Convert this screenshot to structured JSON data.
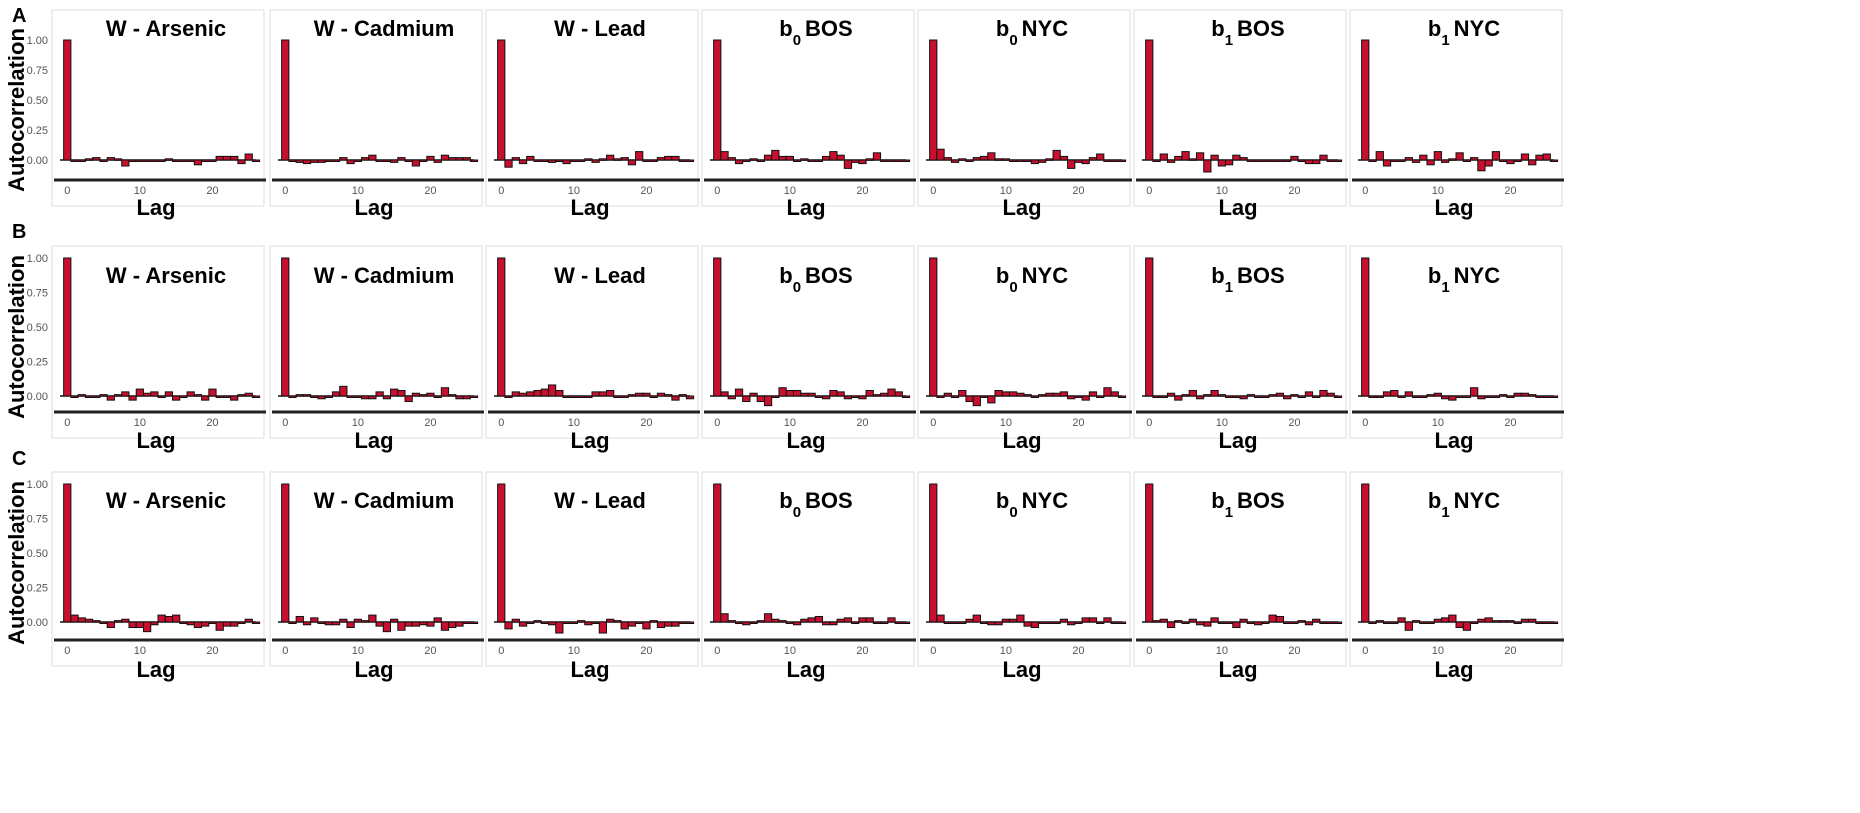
{
  "chart_data": {
    "type": "bar",
    "y_axis_label": "Autocorrelation",
    "x_axis_label": "Lag",
    "y_ticks": [
      "1.00",
      "0.75",
      "0.50",
      "0.25",
      "0.00"
    ],
    "x_ticks": [
      "0",
      "10",
      "20"
    ],
    "ylim": [
      -0.15,
      1.05
    ],
    "xlim": [
      -1,
      26
    ],
    "bar_color": "#c8102e",
    "rows": [
      {
        "label": "A",
        "panels": [
          {
            "title": "W - Arsenic",
            "values": [
              1.0,
              0.0,
              0.0,
              0.01,
              0.02,
              0.0,
              0.02,
              0.01,
              -0.05,
              0.0,
              -0.01,
              0.0,
              -0.01,
              -0.01,
              0.01,
              0.0,
              -0.01,
              0.0,
              -0.04,
              -0.01,
              0.0,
              0.03,
              0.03,
              0.03,
              -0.03,
              0.05,
              -0.01
            ]
          },
          {
            "title": "W - Cadmium",
            "values": [
              1.0,
              0.0,
              -0.02,
              -0.03,
              -0.02,
              -0.02,
              -0.01,
              0.0,
              0.02,
              -0.03,
              0.0,
              0.02,
              0.04,
              -0.01,
              0.0,
              -0.02,
              0.02,
              -0.01,
              -0.05,
              -0.01,
              0.03,
              -0.02,
              0.04,
              0.02,
              0.02,
              0.02,
              0.0
            ]
          },
          {
            "title": "W - Lead",
            "values": [
              1.0,
              -0.06,
              0.02,
              -0.03,
              0.03,
              0.0,
              -0.01,
              -0.02,
              0.0,
              -0.03,
              -0.01,
              -0.01,
              0.01,
              -0.02,
              0.01,
              0.04,
              0.01,
              0.02,
              -0.04,
              0.07,
              -0.01,
              0.0,
              0.02,
              0.03,
              0.03,
              0.0,
              0.0
            ]
          },
          {
            "title": "b0 BOS",
            "sub": "0",
            "main1": "b",
            "main2": "BOS",
            "values": [
              1.0,
              0.07,
              0.02,
              -0.03,
              0.0,
              0.01,
              -0.01,
              0.04,
              0.08,
              0.03,
              0.03,
              0.0,
              0.01,
              0.0,
              -0.01,
              0.03,
              0.07,
              0.04,
              -0.07,
              -0.02,
              -0.03,
              0.01,
              0.06,
              0.0,
              0.0,
              0.0,
              0.0
            ]
          },
          {
            "title": "b0 NYC",
            "sub": "0",
            "main1": "b",
            "main2": "NYC",
            "values": [
              1.0,
              0.09,
              0.02,
              -0.02,
              0.01,
              0.0,
              0.02,
              0.03,
              0.06,
              0.01,
              0.01,
              -0.01,
              0.0,
              0.0,
              -0.03,
              -0.02,
              0.01,
              0.08,
              0.03,
              -0.07,
              -0.02,
              -0.03,
              0.02,
              0.05,
              0.0,
              0.0,
              0.0
            ]
          },
          {
            "title": "b1 BOS",
            "sub": "1",
            "main1": "b",
            "main2": "BOS",
            "values": [
              1.0,
              0.0,
              0.05,
              -0.02,
              0.03,
              0.07,
              0.01,
              0.06,
              -0.1,
              0.04,
              -0.05,
              -0.04,
              0.04,
              0.02,
              0.0,
              -0.01,
              -0.01,
              0.0,
              0.0,
              -0.01,
              0.03,
              -0.01,
              -0.03,
              -0.03,
              0.04,
              0.0,
              0.0
            ]
          },
          {
            "title": "b1 NYC",
            "sub": "1",
            "main1": "b",
            "main2": "NYC",
            "values": [
              1.0,
              0.0,
              0.07,
              -0.05,
              0.0,
              0.0,
              0.02,
              -0.02,
              0.04,
              -0.04,
              0.07,
              -0.02,
              0.01,
              0.06,
              0.0,
              0.02,
              -0.09,
              -0.05,
              0.07,
              -0.01,
              -0.03,
              0.0,
              0.05,
              -0.04,
              0.04,
              0.05,
              0.0
            ]
          }
        ]
      },
      {
        "label": "B",
        "panels": [
          {
            "title": "W - Arsenic",
            "values": [
              1.0,
              0.0,
              0.01,
              0.0,
              -0.01,
              0.01,
              -0.03,
              0.01,
              0.03,
              -0.03,
              0.05,
              0.02,
              0.03,
              -0.01,
              0.03,
              -0.03,
              -0.01,
              0.03,
              0.01,
              -0.03,
              0.05,
              0.0,
              0.0,
              -0.03,
              0.01,
              0.02,
              0.0
            ]
          },
          {
            "title": "W - Cadmium",
            "values": [
              1.0,
              0.0,
              0.01,
              0.01,
              -0.01,
              -0.02,
              0.0,
              0.03,
              0.07,
              0.0,
              0.0,
              -0.02,
              -0.02,
              0.03,
              -0.02,
              0.05,
              0.04,
              -0.04,
              0.02,
              0.01,
              0.02,
              0.0,
              0.06,
              0.01,
              -0.02,
              -0.02,
              0.0
            ]
          },
          {
            "title": "W - Lead",
            "values": [
              1.0,
              0.0,
              0.03,
              0.02,
              0.03,
              0.04,
              0.05,
              0.08,
              0.04,
              0.0,
              -0.01,
              -0.01,
              -0.01,
              0.03,
              0.03,
              0.04,
              0.0,
              0.0,
              0.01,
              0.02,
              0.02,
              -0.01,
              0.02,
              0.01,
              -0.03,
              0.01,
              -0.02
            ]
          },
          {
            "title": "b0 BOS",
            "sub": "0",
            "main1": "b",
            "main2": "BOS",
            "values": [
              1.0,
              0.03,
              -0.02,
              0.05,
              -0.04,
              0.02,
              -0.04,
              -0.07,
              -0.01,
              0.06,
              0.04,
              0.04,
              0.02,
              0.02,
              0.0,
              -0.02,
              0.04,
              0.03,
              -0.02,
              0.0,
              -0.02,
              0.04,
              0.01,
              0.02,
              0.05,
              0.03,
              0.0
            ]
          },
          {
            "title": "b0 NYC",
            "sub": "0",
            "main1": "b",
            "main2": "NYC",
            "values": [
              1.0,
              0.0,
              0.02,
              0.0,
              0.04,
              -0.04,
              -0.07,
              0.0,
              -0.05,
              0.04,
              0.03,
              0.03,
              0.02,
              0.01,
              0.0,
              0.01,
              0.02,
              0.02,
              0.03,
              -0.02,
              0.0,
              -0.03,
              0.03,
              0.0,
              0.06,
              0.03,
              0.0
            ]
          },
          {
            "title": "b1 BOS",
            "sub": "1",
            "main1": "b",
            "main2": "BOS",
            "values": [
              1.0,
              0.0,
              0.0,
              0.02,
              -0.03,
              0.01,
              0.04,
              -0.02,
              0.01,
              0.04,
              0.01,
              0.0,
              -0.01,
              -0.02,
              0.01,
              0.0,
              0.0,
              0.01,
              0.02,
              -0.02,
              0.01,
              0.0,
              0.03,
              0.0,
              0.04,
              0.02,
              0.0
            ]
          },
          {
            "title": "b1 NYC",
            "sub": "1",
            "main1": "b",
            "main2": "NYC",
            "values": [
              1.0,
              0.0,
              -0.01,
              0.03,
              0.04,
              0.0,
              0.03,
              0.0,
              -0.01,
              0.01,
              0.02,
              -0.02,
              -0.03,
              0.0,
              0.0,
              0.06,
              -0.02,
              0.0,
              0.0,
              0.01,
              0.0,
              0.02,
              0.02,
              0.01,
              0.0,
              0.0,
              0.0
            ]
          }
        ]
      },
      {
        "label": "C",
        "panels": [
          {
            "title": "W - Arsenic",
            "values": [
              1.0,
              0.05,
              0.03,
              0.02,
              0.01,
              0.0,
              -0.04,
              0.01,
              0.02,
              -0.04,
              -0.04,
              -0.07,
              -0.02,
              0.05,
              0.04,
              0.05,
              0.0,
              -0.02,
              -0.04,
              -0.03,
              0.0,
              -0.06,
              -0.03,
              -0.03,
              -0.01,
              0.02,
              0.0
            ]
          },
          {
            "title": "W - Cadmium",
            "values": [
              1.0,
              0.0,
              0.04,
              -0.02,
              0.03,
              0.0,
              -0.02,
              -0.02,
              0.02,
              -0.04,
              0.02,
              0.01,
              0.05,
              -0.03,
              -0.07,
              0.02,
              -0.06,
              -0.03,
              -0.03,
              -0.02,
              -0.03,
              0.03,
              -0.06,
              -0.04,
              -0.03,
              0.0,
              0.0
            ]
          },
          {
            "title": "W - Lead",
            "values": [
              1.0,
              -0.05,
              0.02,
              -0.03,
              0.0,
              0.01,
              0.0,
              -0.02,
              -0.08,
              -0.01,
              0.0,
              0.01,
              -0.02,
              0.0,
              -0.08,
              0.02,
              0.01,
              -0.05,
              -0.03,
              0.0,
              -0.05,
              0.01,
              -0.04,
              -0.03,
              -0.03,
              0.0,
              0.0
            ]
          },
          {
            "title": "b0 BOS",
            "sub": "0",
            "main1": "b",
            "main2": "BOS",
            "values": [
              1.0,
              0.06,
              0.01,
              0.0,
              -0.02,
              0.0,
              0.01,
              0.06,
              0.02,
              0.01,
              -0.01,
              -0.02,
              0.02,
              0.03,
              0.04,
              -0.02,
              -0.02,
              0.02,
              0.03,
              -0.01,
              0.03,
              0.03,
              0.0,
              0.0,
              0.03,
              0.0,
              0.0
            ]
          },
          {
            "title": "b0 NYC",
            "sub": "0",
            "main1": "b",
            "main2": "NYC",
            "values": [
              1.0,
              0.05,
              0.0,
              -0.01,
              0.0,
              0.02,
              0.05,
              0.0,
              -0.02,
              -0.02,
              0.02,
              0.02,
              0.05,
              -0.03,
              -0.04,
              0.0,
              0.0,
              -0.01,
              0.02,
              -0.02,
              0.0,
              0.03,
              0.03,
              0.0,
              0.03,
              0.0,
              0.0
            ]
          },
          {
            "title": "b1 BOS",
            "sub": "1",
            "main1": "b",
            "main2": "BOS",
            "values": [
              1.0,
              0.01,
              0.02,
              -0.04,
              0.01,
              0.0,
              0.02,
              -0.02,
              -0.03,
              0.03,
              0.0,
              0.0,
              -0.04,
              0.02,
              0.0,
              -0.02,
              0.0,
              0.05,
              0.04,
              0.0,
              -0.01,
              0.01,
              -0.02,
              0.02,
              0.0,
              0.0,
              0.0
            ]
          },
          {
            "title": "b1 NYC",
            "sub": "1",
            "main1": "b",
            "main2": "NYC",
            "values": [
              1.0,
              0.0,
              0.01,
              0.0,
              0.0,
              0.03,
              -0.06,
              0.01,
              -0.01,
              0.0,
              0.02,
              0.03,
              0.05,
              -0.04,
              -0.06,
              0.0,
              0.02,
              0.03,
              0.01,
              0.01,
              0.01,
              0.0,
              0.02,
              0.02,
              0.0,
              0.0,
              0.0
            ]
          }
        ]
      }
    ]
  }
}
